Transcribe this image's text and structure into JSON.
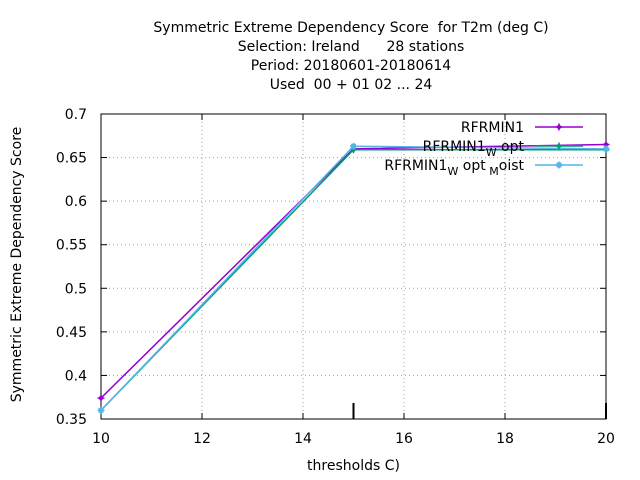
{
  "chart_data": {
    "type": "line",
    "title_lines": [
      "Symmetric Extreme Dependency Score  for T2m (deg C)",
      "Selection: Ireland      28 stations",
      "Period: 20180601-20180614",
      "Used  00 + 01 02 ... 24"
    ],
    "xlabel": "thresholds C)",
    "ylabel": "Symmetric Extreme Dependency Score",
    "xlim": [
      10,
      20
    ],
    "ylim": [
      0.35,
      0.7
    ],
    "x_ticks": [
      "10",
      "12",
      "14",
      "16",
      "18",
      "20"
    ],
    "y_ticks": [
      "0.35",
      "0.4",
      "0.45",
      "0.5",
      "0.55",
      "0.6",
      "0.65",
      "0.7"
    ],
    "grid": true,
    "legend_position": "top-right",
    "series": [
      {
        "name": "RFRMIN1",
        "legend_label": "RFRMIN1",
        "color": "#9400d3",
        "x": [
          10,
          15,
          20
        ],
        "y": [
          0.374,
          0.66,
          0.665
        ]
      },
      {
        "name": "RFRMIN1_W_opt",
        "legend_label": "RFRMIN1 W opt",
        "legend_base": "RFRMIN1",
        "legend_sub": "W",
        "legend_rest": "opt",
        "color": "#009e73",
        "x": [
          10,
          15,
          20
        ],
        "y": [
          0.36,
          0.659,
          0.659
        ]
      },
      {
        "name": "RFRMIN1_W opt_M oist",
        "legend_label": "RFRMIN1 W opt M oist",
        "legend_base": "RFRMIN1",
        "legend_sub": "W",
        "legend_rest": "opt",
        "legend_sub2": "M",
        "legend_rest2": "oist",
        "color": "#56b4e9",
        "x": [
          10,
          15,
          20
        ],
        "y": [
          0.36,
          0.663,
          0.66
        ]
      }
    ],
    "annotations": [
      {
        "type": "tick-mark",
        "x": 15
      },
      {
        "type": "tick-mark",
        "x": 20
      }
    ]
  }
}
